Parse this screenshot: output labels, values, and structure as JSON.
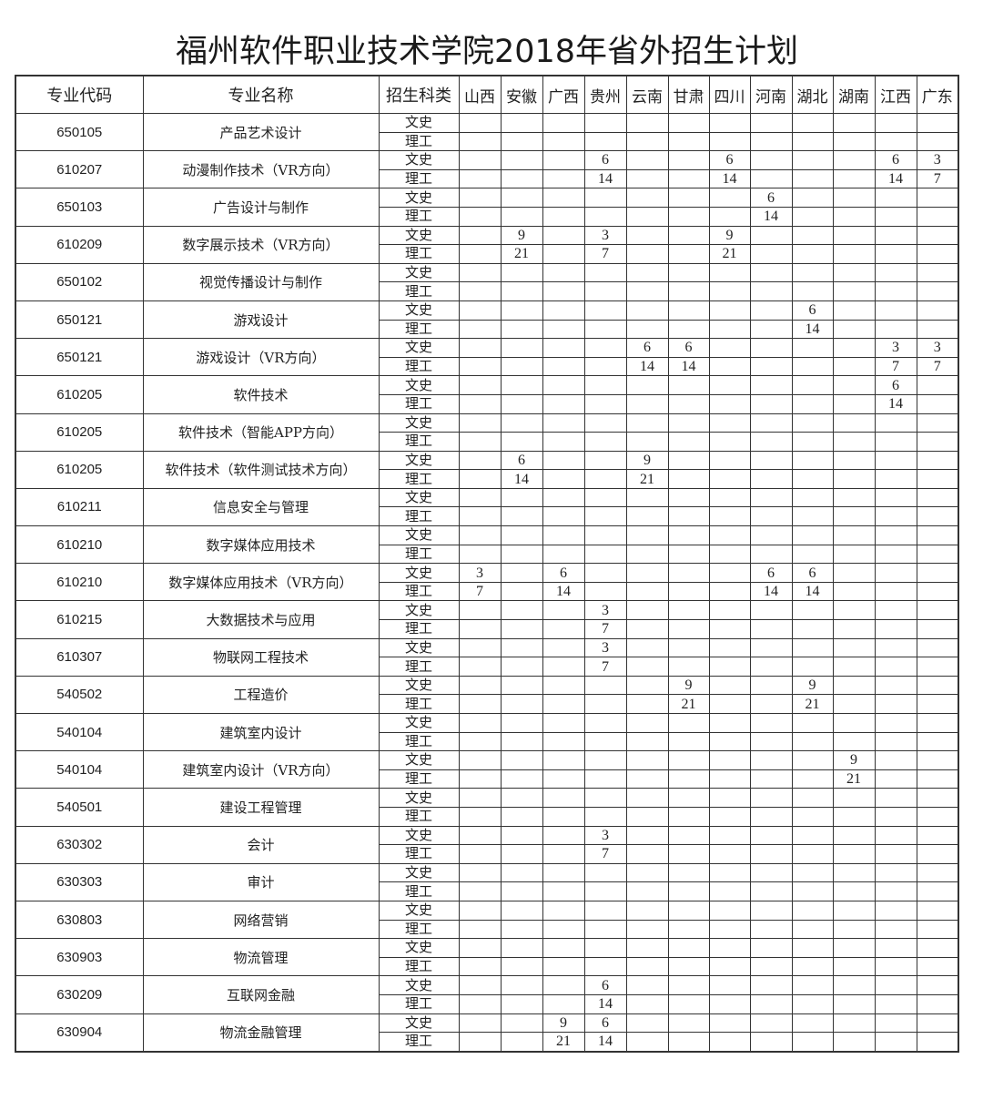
{
  "title": "福州软件职业技术学院2018年省外招生计划",
  "headers": {
    "code": "专业代码",
    "name": "专业名称",
    "category": "招生科类"
  },
  "provinces": [
    "山西",
    "安徽",
    "广西",
    "贵州",
    "云南",
    "甘肃",
    "四川",
    "河南",
    "湖北",
    "湖南",
    "江西",
    "广东"
  ],
  "categories": [
    "文史",
    "理工"
  ],
  "majors": [
    {
      "code": "650105",
      "name": "产品艺术设计",
      "文史": [
        "",
        "",
        "",
        "",
        "",
        "",
        "",
        "",
        "",
        "",
        "",
        ""
      ],
      "理工": [
        "",
        "",
        "",
        "",
        "",
        "",
        "",
        "",
        "",
        "",
        "",
        ""
      ]
    },
    {
      "code": "610207",
      "name": "动漫制作技术（VR方向）",
      "文史": [
        "",
        "",
        "",
        "6",
        "",
        "",
        "6",
        "",
        "",
        "",
        "6",
        "3"
      ],
      "理工": [
        "",
        "",
        "",
        "14",
        "",
        "",
        "14",
        "",
        "",
        "",
        "14",
        "7"
      ]
    },
    {
      "code": "650103",
      "name": "广告设计与制作",
      "文史": [
        "",
        "",
        "",
        "",
        "",
        "",
        "",
        "6",
        "",
        "",
        "",
        ""
      ],
      "理工": [
        "",
        "",
        "",
        "",
        "",
        "",
        "",
        "14",
        "",
        "",
        "",
        ""
      ]
    },
    {
      "code": "610209",
      "name": "数字展示技术（VR方向）",
      "文史": [
        "",
        "9",
        "",
        "3",
        "",
        "",
        "9",
        "",
        "",
        "",
        "",
        ""
      ],
      "理工": [
        "",
        "21",
        "",
        "7",
        "",
        "",
        "21",
        "",
        "",
        "",
        "",
        ""
      ]
    },
    {
      "code": "650102",
      "name": "视觉传播设计与制作",
      "文史": [
        "",
        "",
        "",
        "",
        "",
        "",
        "",
        "",
        "",
        "",
        "",
        ""
      ],
      "理工": [
        "",
        "",
        "",
        "",
        "",
        "",
        "",
        "",
        "",
        "",
        "",
        ""
      ]
    },
    {
      "code": "650121",
      "name": "游戏设计",
      "文史": [
        "",
        "",
        "",
        "",
        "",
        "",
        "",
        "",
        "6",
        "",
        "",
        ""
      ],
      "理工": [
        "",
        "",
        "",
        "",
        "",
        "",
        "",
        "",
        "14",
        "",
        "",
        ""
      ]
    },
    {
      "code": "650121",
      "name": "游戏设计（VR方向）",
      "文史": [
        "",
        "",
        "",
        "",
        "6",
        "6",
        "",
        "",
        "",
        "",
        "3",
        "3"
      ],
      "理工": [
        "",
        "",
        "",
        "",
        "14",
        "14",
        "",
        "",
        "",
        "",
        "7",
        "7"
      ]
    },
    {
      "code": "610205",
      "name": "软件技术",
      "文史": [
        "",
        "",
        "",
        "",
        "",
        "",
        "",
        "",
        "",
        "",
        "6",
        ""
      ],
      "理工": [
        "",
        "",
        "",
        "",
        "",
        "",
        "",
        "",
        "",
        "",
        "14",
        ""
      ]
    },
    {
      "code": "610205",
      "name": "软件技术（智能APP方向）",
      "文史": [
        "",
        "",
        "",
        "",
        "",
        "",
        "",
        "",
        "",
        "",
        "",
        ""
      ],
      "理工": [
        "",
        "",
        "",
        "",
        "",
        "",
        "",
        "",
        "",
        "",
        "",
        ""
      ]
    },
    {
      "code": "610205",
      "name": "软件技术（软件测试技术方向）",
      "文史": [
        "",
        "6",
        "",
        "",
        "9",
        "",
        "",
        "",
        "",
        "",
        "",
        ""
      ],
      "理工": [
        "",
        "14",
        "",
        "",
        "21",
        "",
        "",
        "",
        "",
        "",
        "",
        ""
      ]
    },
    {
      "code": "610211",
      "name": "信息安全与管理",
      "文史": [
        "",
        "",
        "",
        "",
        "",
        "",
        "",
        "",
        "",
        "",
        "",
        ""
      ],
      "理工": [
        "",
        "",
        "",
        "",
        "",
        "",
        "",
        "",
        "",
        "",
        "",
        ""
      ]
    },
    {
      "code": "610210",
      "name": "数字媒体应用技术",
      "文史": [
        "",
        "",
        "",
        "",
        "",
        "",
        "",
        "",
        "",
        "",
        "",
        ""
      ],
      "理工": [
        "",
        "",
        "",
        "",
        "",
        "",
        "",
        "",
        "",
        "",
        "",
        ""
      ]
    },
    {
      "code": "610210",
      "name": "数字媒体应用技术（VR方向）",
      "文史": [
        "3",
        "",
        "6",
        "",
        "",
        "",
        "",
        "6",
        "6",
        "",
        "",
        ""
      ],
      "理工": [
        "7",
        "",
        "14",
        "",
        "",
        "",
        "",
        "14",
        "14",
        "",
        "",
        ""
      ]
    },
    {
      "code": "610215",
      "name": "大数据技术与应用",
      "文史": [
        "",
        "",
        "",
        "3",
        "",
        "",
        "",
        "",
        "",
        "",
        "",
        ""
      ],
      "理工": [
        "",
        "",
        "",
        "7",
        "",
        "",
        "",
        "",
        "",
        "",
        "",
        ""
      ]
    },
    {
      "code": "610307",
      "name": "物联网工程技术",
      "文史": [
        "",
        "",
        "",
        "3",
        "",
        "",
        "",
        "",
        "",
        "",
        "",
        ""
      ],
      "理工": [
        "",
        "",
        "",
        "7",
        "",
        "",
        "",
        "",
        "",
        "",
        "",
        ""
      ]
    },
    {
      "code": "540502",
      "name": "工程造价",
      "文史": [
        "",
        "",
        "",
        "",
        "",
        "9",
        "",
        "",
        "9",
        "",
        "",
        ""
      ],
      "理工": [
        "",
        "",
        "",
        "",
        "",
        "21",
        "",
        "",
        "21",
        "",
        "",
        ""
      ]
    },
    {
      "code": "540104",
      "name": "建筑室内设计",
      "文史": [
        "",
        "",
        "",
        "",
        "",
        "",
        "",
        "",
        "",
        "",
        "",
        ""
      ],
      "理工": [
        "",
        "",
        "",
        "",
        "",
        "",
        "",
        "",
        "",
        "",
        "",
        ""
      ]
    },
    {
      "code": "540104",
      "name": "建筑室内设计（VR方向）",
      "文史": [
        "",
        "",
        "",
        "",
        "",
        "",
        "",
        "",
        "",
        "9",
        "",
        ""
      ],
      "理工": [
        "",
        "",
        "",
        "",
        "",
        "",
        "",
        "",
        "",
        "21",
        "",
        ""
      ]
    },
    {
      "code": "540501",
      "name": "建设工程管理",
      "文史": [
        "",
        "",
        "",
        "",
        "",
        "",
        "",
        "",
        "",
        "",
        "",
        ""
      ],
      "理工": [
        "",
        "",
        "",
        "",
        "",
        "",
        "",
        "",
        "",
        "",
        "",
        ""
      ]
    },
    {
      "code": "630302",
      "name": "会计",
      "文史": [
        "",
        "",
        "",
        "3",
        "",
        "",
        "",
        "",
        "",
        "",
        "",
        ""
      ],
      "理工": [
        "",
        "",
        "",
        "7",
        "",
        "",
        "",
        "",
        "",
        "",
        "",
        ""
      ]
    },
    {
      "code": "630303",
      "name": "审计",
      "文史": [
        "",
        "",
        "",
        "",
        "",
        "",
        "",
        "",
        "",
        "",
        "",
        ""
      ],
      "理工": [
        "",
        "",
        "",
        "",
        "",
        "",
        "",
        "",
        "",
        "",
        "",
        ""
      ]
    },
    {
      "code": "630803",
      "name": "网络营销",
      "文史": [
        "",
        "",
        "",
        "",
        "",
        "",
        "",
        "",
        "",
        "",
        "",
        ""
      ],
      "理工": [
        "",
        "",
        "",
        "",
        "",
        "",
        "",
        "",
        "",
        "",
        "",
        ""
      ]
    },
    {
      "code": "630903",
      "name": "物流管理",
      "文史": [
        "",
        "",
        "",
        "",
        "",
        "",
        "",
        "",
        "",
        "",
        "",
        ""
      ],
      "理工": [
        "",
        "",
        "",
        "",
        "",
        "",
        "",
        "",
        "",
        "",
        "",
        ""
      ]
    },
    {
      "code": "630209",
      "name": "互联网金融",
      "文史": [
        "",
        "",
        "",
        "6",
        "",
        "",
        "",
        "",
        "",
        "",
        "",
        ""
      ],
      "理工": [
        "",
        "",
        "",
        "14",
        "",
        "",
        "",
        "",
        "",
        "",
        "",
        ""
      ]
    },
    {
      "code": "630904",
      "name": "物流金融管理",
      "文史": [
        "",
        "",
        "9",
        "6",
        "",
        "",
        "",
        "",
        "",
        "",
        "",
        ""
      ],
      "理工": [
        "",
        "",
        "21",
        "14",
        "",
        "",
        "",
        "",
        "",
        "",
        "",
        ""
      ]
    }
  ]
}
